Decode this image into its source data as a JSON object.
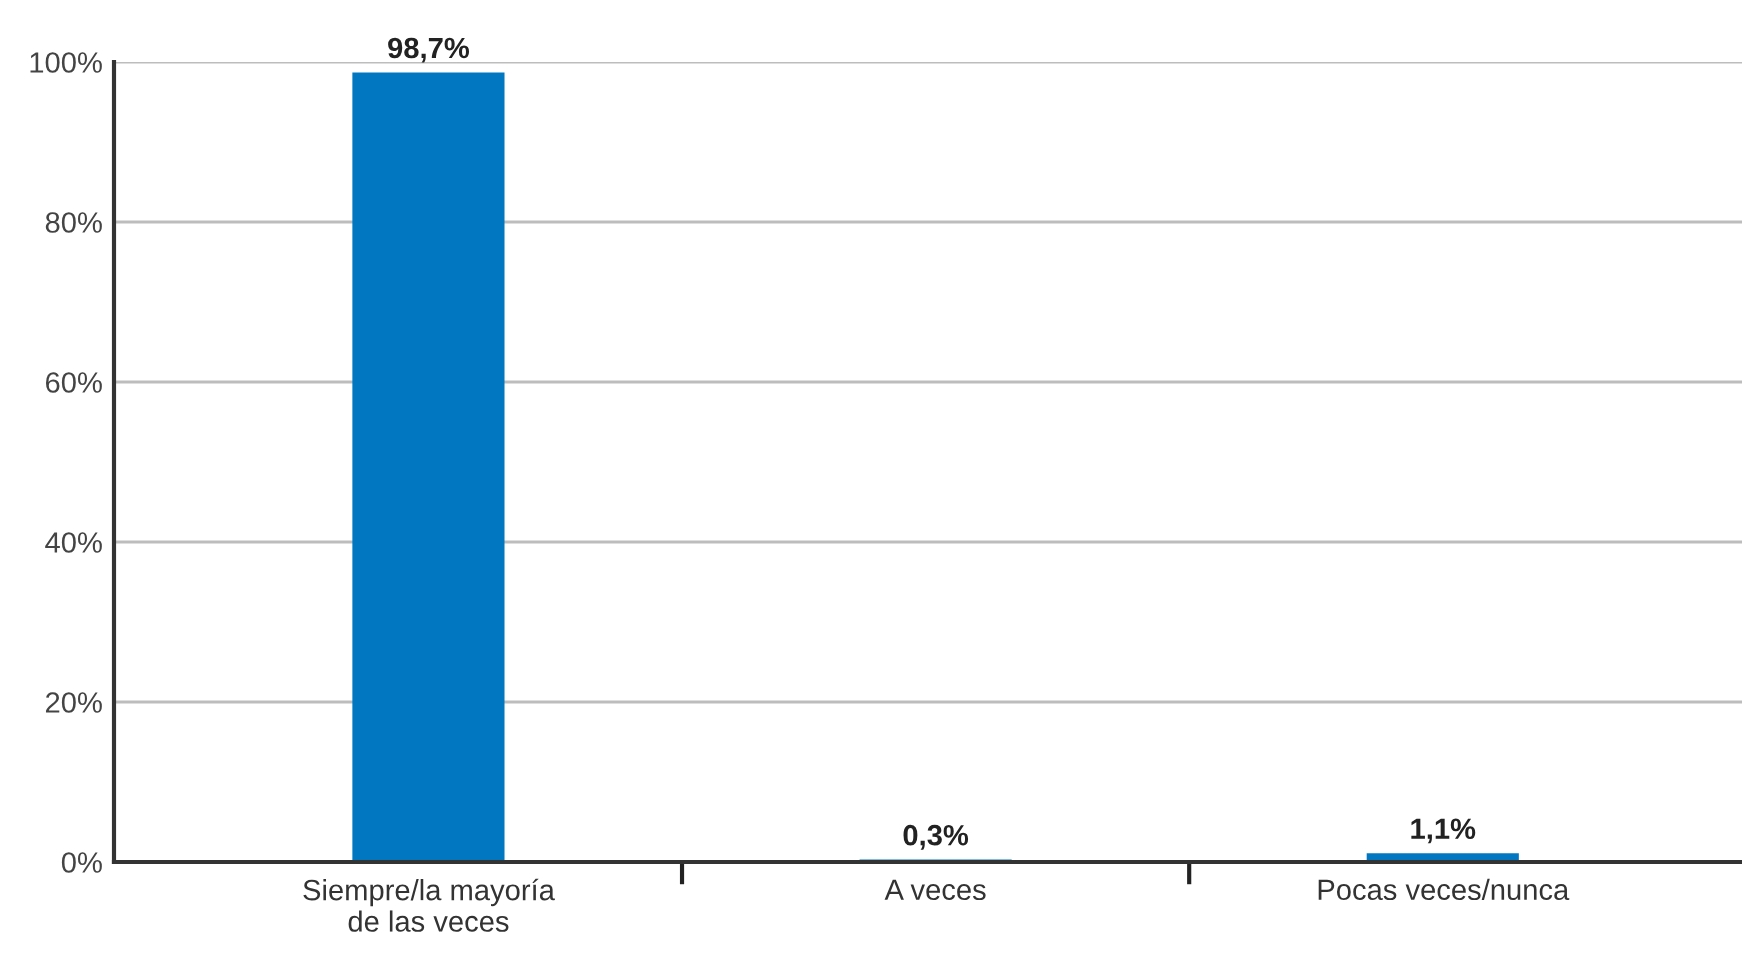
{
  "chart_data": {
    "type": "bar",
    "categories": [
      "Siempre/la mayoría\nde las veces",
      "A veces",
      "Pocas veces/nunca"
    ],
    "values": [
      98.7,
      0.3,
      1.1
    ],
    "color": "#0077c0",
    "value_labels": [
      "98,7%",
      "0,3%",
      "1,1%"
    ],
    "ylim": [
      0,
      100
    ],
    "yticks": [
      {
        "value": 0,
        "label": "0%"
      },
      {
        "value": 20,
        "label": "20%"
      },
      {
        "value": 40,
        "label": "40%"
      },
      {
        "value": 60,
        "label": "60%"
      },
      {
        "value": 80,
        "label": "80%"
      },
      {
        "value": 100,
        "label": "100%"
      }
    ],
    "grid": "y",
    "legend": false
  }
}
